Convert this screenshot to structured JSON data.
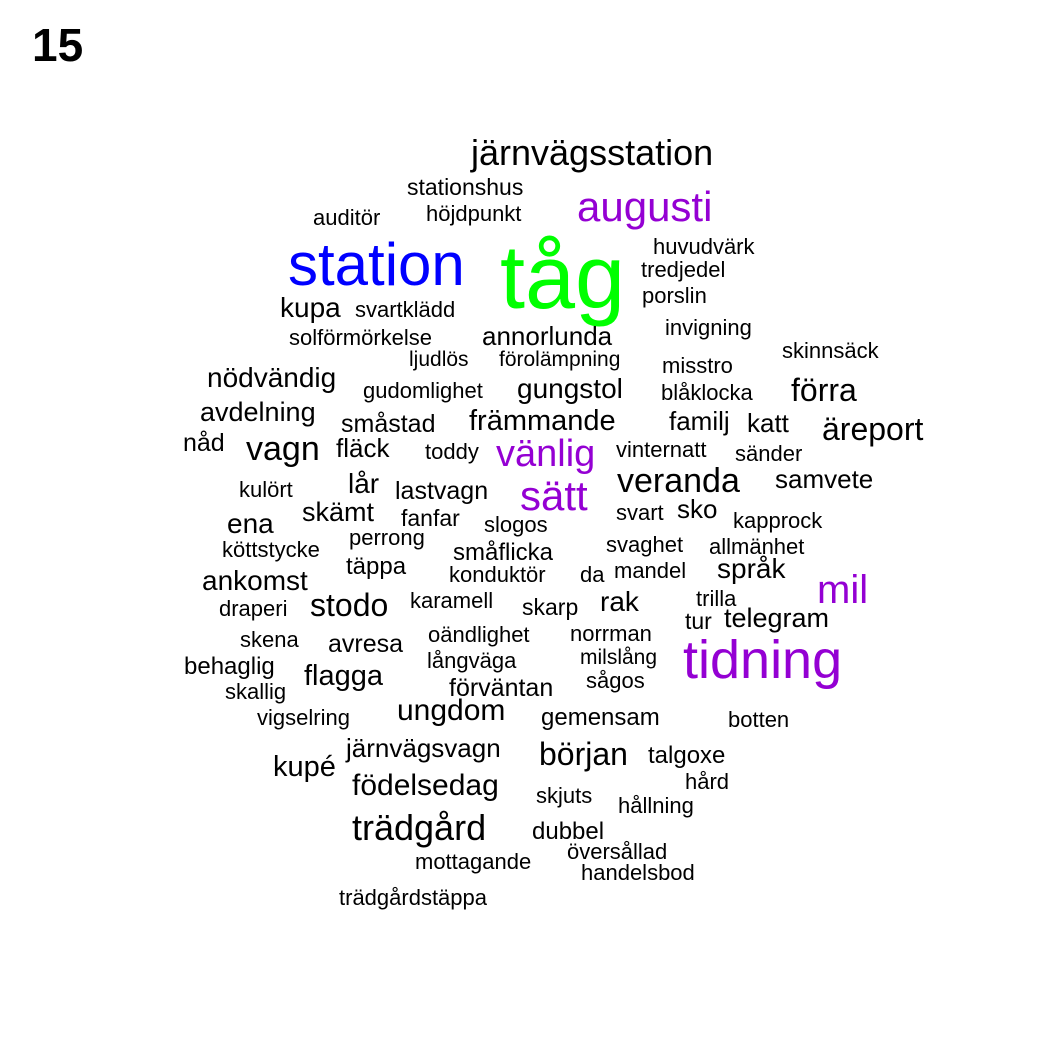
{
  "panel_number": "15",
  "colors": {
    "default": "#000000",
    "blue": "#0000ff",
    "green": "#00ff00",
    "purple": "#9400d3"
  },
  "words": [
    {
      "text": "tåg",
      "color": "green"
    },
    {
      "text": "station",
      "color": "blue"
    },
    {
      "text": "tidning",
      "color": "purple"
    },
    {
      "text": "sätt",
      "color": "purple"
    },
    {
      "text": "vänlig",
      "color": "purple"
    },
    {
      "text": "augusti",
      "color": "purple"
    },
    {
      "text": "mil",
      "color": "purple"
    },
    {
      "text": "järnvägsstation",
      "color": "default"
    },
    {
      "text": "stationshus",
      "color": "default"
    },
    {
      "text": "höjdpunkt",
      "color": "default"
    },
    {
      "text": "auditör",
      "color": "default"
    },
    {
      "text": "huvudvärk",
      "color": "default"
    },
    {
      "text": "tredjedel",
      "color": "default"
    },
    {
      "text": "porslin",
      "color": "default"
    },
    {
      "text": "kupa",
      "color": "default"
    },
    {
      "text": "svartklädd",
      "color": "default"
    },
    {
      "text": "solförmörkelse",
      "color": "default"
    },
    {
      "text": "annorlunda",
      "color": "default"
    },
    {
      "text": "invigning",
      "color": "default"
    },
    {
      "text": "skinnsäck",
      "color": "default"
    },
    {
      "text": "ljudlös",
      "color": "default"
    },
    {
      "text": "förolämpning",
      "color": "default"
    },
    {
      "text": "misstro",
      "color": "default"
    },
    {
      "text": "nödvändig",
      "color": "default"
    },
    {
      "text": "gudomlighet",
      "color": "default"
    },
    {
      "text": "gungstol",
      "color": "default"
    },
    {
      "text": "blåklocka",
      "color": "default"
    },
    {
      "text": "förra",
      "color": "default"
    },
    {
      "text": "avdelning",
      "color": "default"
    },
    {
      "text": "småstad",
      "color": "default"
    },
    {
      "text": "främmande",
      "color": "default"
    },
    {
      "text": "familj",
      "color": "default"
    },
    {
      "text": "katt",
      "color": "default"
    },
    {
      "text": "äreport",
      "color": "default"
    },
    {
      "text": "nåd",
      "color": "default"
    },
    {
      "text": "vagn",
      "color": "default"
    },
    {
      "text": "fläck",
      "color": "default"
    },
    {
      "text": "toddy",
      "color": "default"
    },
    {
      "text": "vinternatt",
      "color": "default"
    },
    {
      "text": "sänder",
      "color": "default"
    },
    {
      "text": "kulört",
      "color": "default"
    },
    {
      "text": "lår",
      "color": "default"
    },
    {
      "text": "lastvagn",
      "color": "default"
    },
    {
      "text": "veranda",
      "color": "default"
    },
    {
      "text": "samvete",
      "color": "default"
    },
    {
      "text": "skämt",
      "color": "default"
    },
    {
      "text": "fanfar",
      "color": "default"
    },
    {
      "text": "svart",
      "color": "default"
    },
    {
      "text": "sko",
      "color": "default"
    },
    {
      "text": "ena",
      "color": "default"
    },
    {
      "text": "slogos",
      "color": "default"
    },
    {
      "text": "kapprock",
      "color": "default"
    },
    {
      "text": "perrong",
      "color": "default"
    },
    {
      "text": "köttstycke",
      "color": "default"
    },
    {
      "text": "småflicka",
      "color": "default"
    },
    {
      "text": "svaghet",
      "color": "default"
    },
    {
      "text": "allmänhet",
      "color": "default"
    },
    {
      "text": "täppa",
      "color": "default"
    },
    {
      "text": "konduktör",
      "color": "default"
    },
    {
      "text": "da",
      "color": "default"
    },
    {
      "text": "mandel",
      "color": "default"
    },
    {
      "text": "språk",
      "color": "default"
    },
    {
      "text": "ankomst",
      "color": "default"
    },
    {
      "text": "draperi",
      "color": "default"
    },
    {
      "text": "stodo",
      "color": "default"
    },
    {
      "text": "karamell",
      "color": "default"
    },
    {
      "text": "skarp",
      "color": "default"
    },
    {
      "text": "rak",
      "color": "default"
    },
    {
      "text": "trilla",
      "color": "default"
    },
    {
      "text": "tur",
      "color": "default"
    },
    {
      "text": "telegram",
      "color": "default"
    },
    {
      "text": "skena",
      "color": "default"
    },
    {
      "text": "avresa",
      "color": "default"
    },
    {
      "text": "oändlighet",
      "color": "default"
    },
    {
      "text": "norrman",
      "color": "default"
    },
    {
      "text": "behaglig",
      "color": "default"
    },
    {
      "text": "långväga",
      "color": "default"
    },
    {
      "text": "milslång",
      "color": "default"
    },
    {
      "text": "skallig",
      "color": "default"
    },
    {
      "text": "flagga",
      "color": "default"
    },
    {
      "text": "förväntan",
      "color": "default"
    },
    {
      "text": "sågos",
      "color": "default"
    },
    {
      "text": "vigselring",
      "color": "default"
    },
    {
      "text": "ungdom",
      "color": "default"
    },
    {
      "text": "gemensam",
      "color": "default"
    },
    {
      "text": "botten",
      "color": "default"
    },
    {
      "text": "järnvägsvagn",
      "color": "default"
    },
    {
      "text": "början",
      "color": "default"
    },
    {
      "text": "talgoxe",
      "color": "default"
    },
    {
      "text": "kupé",
      "color": "default"
    },
    {
      "text": "hård",
      "color": "default"
    },
    {
      "text": "födelsedag",
      "color": "default"
    },
    {
      "text": "skjuts",
      "color": "default"
    },
    {
      "text": "hållning",
      "color": "default"
    },
    {
      "text": "trädgård",
      "color": "default"
    },
    {
      "text": "dubbel",
      "color": "default"
    },
    {
      "text": "översållad",
      "color": "default"
    },
    {
      "text": "mottagande",
      "color": "default"
    },
    {
      "text": "handelsbod",
      "color": "default"
    },
    {
      "text": "trädgårdstäppa",
      "color": "default"
    }
  ]
}
